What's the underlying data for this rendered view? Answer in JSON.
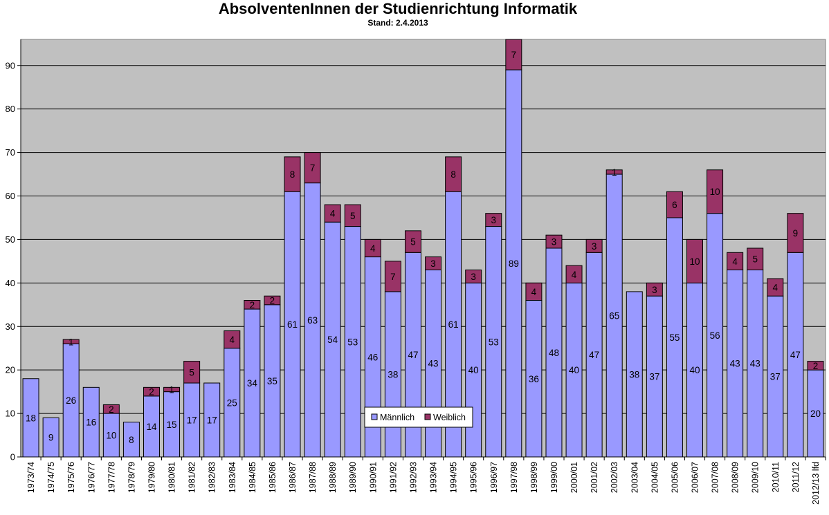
{
  "chart_data": {
    "type": "bar",
    "stacked": true,
    "title": "AbsolventenInnen der Studienrichtung Informatik",
    "subtitle": "Stand: 2.4.2013",
    "ylim": [
      0,
      96
    ],
    "yticks": [
      0,
      10,
      20,
      30,
      40,
      50,
      60,
      70,
      80,
      90
    ],
    "grid": true,
    "legend_position": "bottom-center",
    "categories": [
      "1973/74",
      "1974/75",
      "1975/76",
      "1976/77",
      "1977/78",
      "1978/79",
      "1979/80",
      "1980/81",
      "1981/82",
      "1982/83",
      "1983/84",
      "1984/85",
      "1985/86",
      "1986/87",
      "1987/88",
      "1988/89",
      "1989/90",
      "1990/91",
      "1991/92",
      "1992/93",
      "1993/94",
      "1994/95",
      "1995/96",
      "1996/97",
      "1997/98",
      "1998/99",
      "1999/00",
      "2000/01",
      "2001/02",
      "2002/03",
      "2003/04",
      "2004/05",
      "2005/06",
      "2006/07",
      "2007/08",
      "2008/09",
      "2009/10",
      "2010/11",
      "2011/12",
      "2012/13 lfd"
    ],
    "series": [
      {
        "name": "Männlich",
        "color": "#9999ff",
        "values": [
          18,
          9,
          26,
          16,
          10,
          8,
          14,
          15,
          17,
          17,
          25,
          34,
          35,
          61,
          63,
          54,
          53,
          46,
          38,
          47,
          43,
          61,
          40,
          53,
          89,
          36,
          48,
          40,
          47,
          65,
          38,
          37,
          55,
          40,
          56,
          43,
          43,
          37,
          47,
          20
        ]
      },
      {
        "name": "Weiblich",
        "color": "#993366",
        "values": [
          0,
          0,
          1,
          0,
          2,
          0,
          2,
          1,
          5,
          0,
          4,
          2,
          2,
          8,
          7,
          4,
          5,
          4,
          7,
          5,
          3,
          8,
          3,
          3,
          7,
          4,
          3,
          4,
          3,
          1,
          0,
          3,
          6,
          10,
          10,
          4,
          5,
          4,
          9,
          2
        ]
      }
    ],
    "plot_background": "#c0c0c0"
  }
}
